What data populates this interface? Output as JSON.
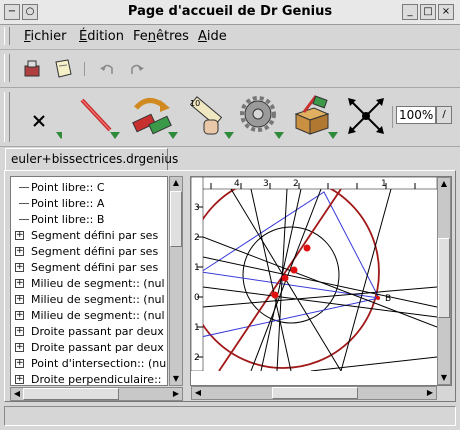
{
  "window": {
    "title": "Page d'accueil de Dr Genius",
    "menu_glyph": "−",
    "minimize_glyph": "_",
    "maximize_glyph": "□",
    "close_glyph": "×"
  },
  "menubar": {
    "items": [
      {
        "label": "Fichier",
        "mnemonic": "F",
        "rest": "ichier"
      },
      {
        "label": "Édition",
        "mnemonic": "É",
        "rest": "dition"
      },
      {
        "label": "Fenêtres",
        "mnemonic": "n",
        "before": "Fe",
        "rest": "êtres"
      },
      {
        "label": "Aide",
        "mnemonic": "A",
        "rest": "ide"
      }
    ]
  },
  "toolbar_primary": {
    "icons": [
      "stamp-icon",
      "note-icon",
      "undo-icon",
      "redo-icon"
    ]
  },
  "toolbar_tools": {
    "icons": [
      "point-tool-icon",
      "line-tool-icon",
      "transform-tool-icon",
      "measure-tool-icon",
      "macro-gear-icon",
      "box-tool-icon",
      "move-tool-icon"
    ],
    "zoom_value": "100%"
  },
  "tab": {
    "label": "euler+bissectrices.drgenius"
  },
  "tree": {
    "items": [
      {
        "label": "Point libre:: C",
        "expander": false
      },
      {
        "label": "Point libre:: A",
        "expander": false
      },
      {
        "label": "Point libre:: B",
        "expander": false
      },
      {
        "label": "Segment défini par ses",
        "expander": true
      },
      {
        "label": "Segment défini par ses",
        "expander": true
      },
      {
        "label": "Segment défini par ses",
        "expander": true
      },
      {
        "label": "Milieu de segment:: (nul",
        "expander": true
      },
      {
        "label": "Milieu de segment:: (nul",
        "expander": true
      },
      {
        "label": "Milieu de segment:: (nul",
        "expander": true
      },
      {
        "label": "Droite passant par deux",
        "expander": true
      },
      {
        "label": "Droite passant par deux",
        "expander": true
      },
      {
        "label": "Point d'intersection:: (nu",
        "expander": true
      },
      {
        "label": "Droite perpendiculaire::",
        "expander": true
      }
    ]
  },
  "canvas": {
    "top_ruler_ticks": [
      "4",
      "3",
      "2",
      "1"
    ],
    "left_ruler_ticks": [
      "3",
      "2",
      "1",
      "0",
      "1",
      "2"
    ],
    "point_label_B": "B",
    "colors": {
      "circle": "#a01818",
      "triangle": "#3a3adc",
      "point": "#e01010",
      "line": "#000000"
    }
  }
}
